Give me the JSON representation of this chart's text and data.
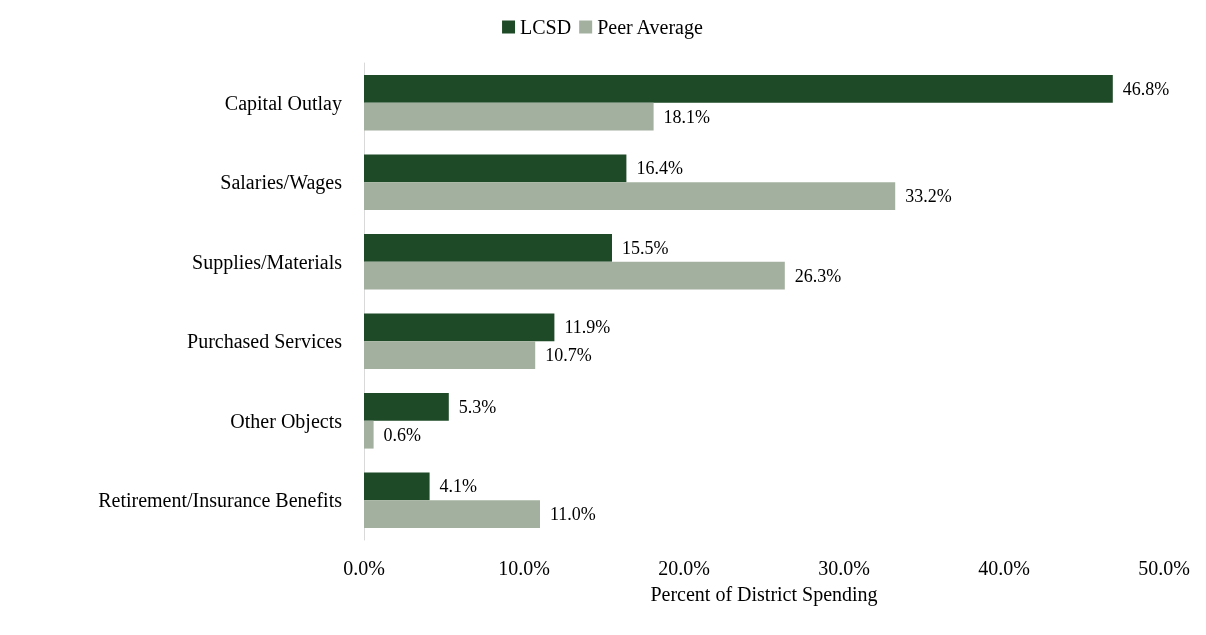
{
  "chart_data": {
    "type": "bar",
    "orientation": "horizontal",
    "xlabel": "Percent of District Spending",
    "categories": [
      "Capital Outlay",
      "Salaries/Wages",
      "Supplies/Materials",
      "Purchased Services",
      "Other Objects",
      "Retirement/Insurance Benefits"
    ],
    "series": [
      {
        "name": "LCSD",
        "color": "#1f4a27",
        "values": [
          46.8,
          16.4,
          15.5,
          11.9,
          5.3,
          4.1
        ],
        "value_labels": [
          "46.8%",
          "16.4%",
          "15.5%",
          "11.9%",
          "5.3%",
          "4.1%"
        ]
      },
      {
        "name": "Peer Average",
        "color": "#a3b09f",
        "values": [
          18.1,
          33.2,
          26.3,
          10.7,
          0.6,
          11.0
        ],
        "value_labels": [
          "18.1%",
          "33.2%",
          "26.3%",
          "10.7%",
          "0.6%",
          "11.0%"
        ]
      }
    ],
    "xlim": [
      0,
      50
    ],
    "xticks": [
      {
        "value": 0,
        "label": "0.0%"
      },
      {
        "value": 10,
        "label": "10.0%"
      },
      {
        "value": 20,
        "label": "20.0%"
      },
      {
        "value": 30,
        "label": "30.0%"
      },
      {
        "value": 40,
        "label": "40.0%"
      },
      {
        "value": 50,
        "label": "50.0%"
      }
    ],
    "grid": false,
    "legend": "top"
  }
}
